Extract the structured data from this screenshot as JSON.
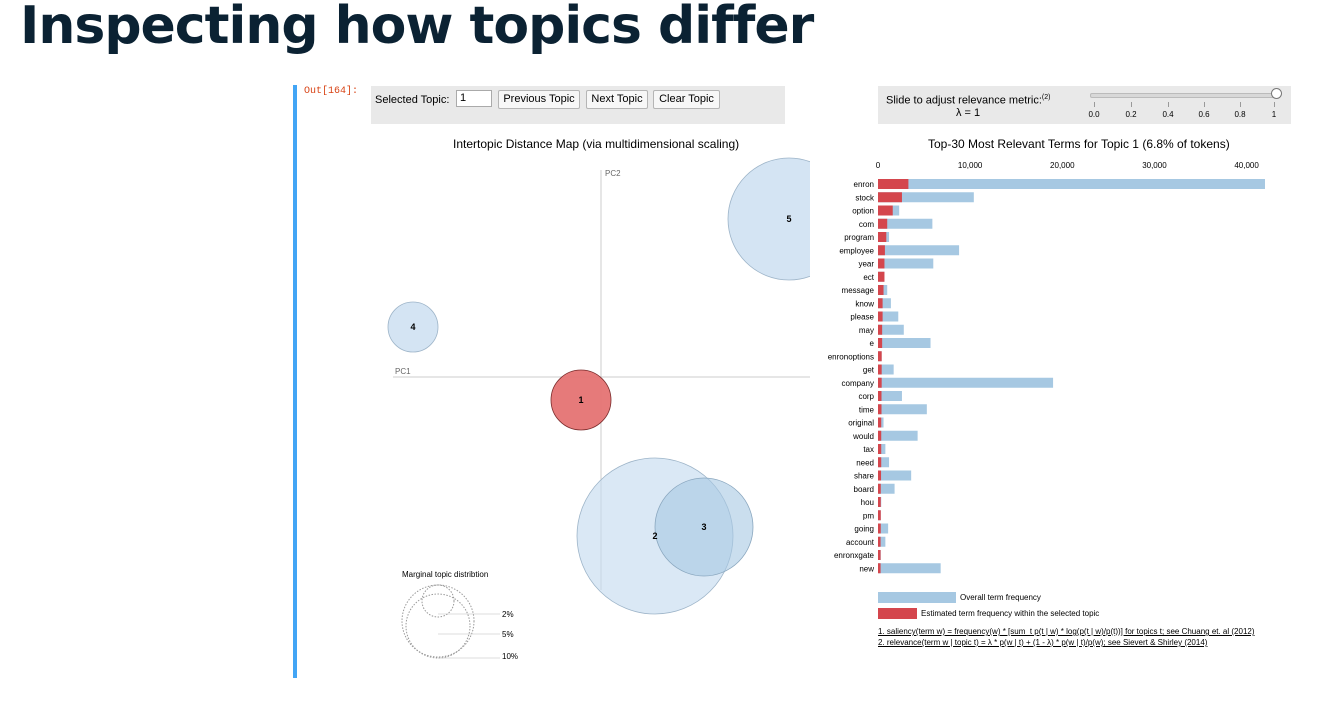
{
  "slide": {
    "title": "Inspecting how topics differ"
  },
  "cell": {
    "output_prompt": "Out[164]:"
  },
  "controls": {
    "selected_topic_label": "Selected Topic:",
    "selected_topic_value": "1",
    "previous_topic": "Previous Topic",
    "next_topic": "Next Topic",
    "clear_topic": "Clear Topic"
  },
  "relevance": {
    "label": "Slide to adjust relevance metric:",
    "footnote_marker": "(2)",
    "lambda_text": "λ = 1",
    "lambda_value": 1,
    "tick_labels": [
      "0.0",
      "0.2",
      "0.4",
      "0.6",
      "0.8",
      "1"
    ]
  },
  "intertopic_map": {
    "title": "Intertopic Distance Map (via multidimensional scaling)",
    "pc1_label": "PC1",
    "pc2_label": "PC2",
    "selected_color": "#e57373",
    "default_color": "#c6dbef",
    "topics": [
      {
        "id": "1",
        "selected": true
      },
      {
        "id": "2",
        "selected": false
      },
      {
        "id": "3",
        "selected": false
      },
      {
        "id": "4",
        "selected": false
      },
      {
        "id": "5",
        "selected": false
      }
    ],
    "marginal": {
      "title": "Marginal topic distribtion",
      "labels": [
        "2%",
        "5%",
        "10%"
      ]
    }
  },
  "chart_data": {
    "type": "bar",
    "orientation": "horizontal",
    "title": "Top-30 Most Relevant Terms for Topic 1 (6.8% of tokens)",
    "xlim": [
      0,
      42000
    ],
    "x_ticks": [
      "0",
      "10,000",
      "20,000",
      "30,000",
      "40,000"
    ],
    "categories": [
      "enron",
      "stock",
      "option",
      "com",
      "program",
      "employee",
      "year",
      "ect",
      "message",
      "know",
      "please",
      "may",
      "e",
      "enronoptions",
      "get",
      "company",
      "corp",
      "time",
      "original",
      "would",
      "tax",
      "need",
      "share",
      "board",
      "hou",
      "pm",
      "going",
      "account",
      "enronxgate",
      "new"
    ],
    "series": [
      {
        "name": "Overall term frequency",
        "color": "#a6c8e2",
        "values": [
          42000,
          10400,
          2300,
          5900,
          1200,
          8800,
          6000,
          700,
          1000,
          1400,
          2200,
          2800,
          5700,
          400,
          1700,
          19000,
          2600,
          5300,
          600,
          4300,
          800,
          1200,
          3600,
          1800,
          350,
          300,
          1100,
          800,
          300,
          6800
        ]
      },
      {
        "name": "Estimated term frequency within the selected topic",
        "color": "#d4464d",
        "values": [
          3300,
          2600,
          1600,
          1000,
          900,
          750,
          700,
          700,
          600,
          500,
          500,
          450,
          450,
          400,
          400,
          400,
          380,
          380,
          350,
          350,
          350,
          350,
          330,
          300,
          300,
          300,
          300,
          280,
          280,
          280
        ]
      }
    ],
    "legend": [
      "Overall term frequency",
      "Estimated term frequency within the selected topic"
    ]
  },
  "footnotes": [
    "1. saliency(term w) = frequency(w) * [sum_t p(t | w) * log(p(t | w)/p(t))] for topics t; see Chuang et. al (2012)",
    "2. relevance(term w | topic t) = λ * p(w | t) + (1 - λ) * p(w | t)/p(w); see Sievert & Shirley (2014)"
  ]
}
